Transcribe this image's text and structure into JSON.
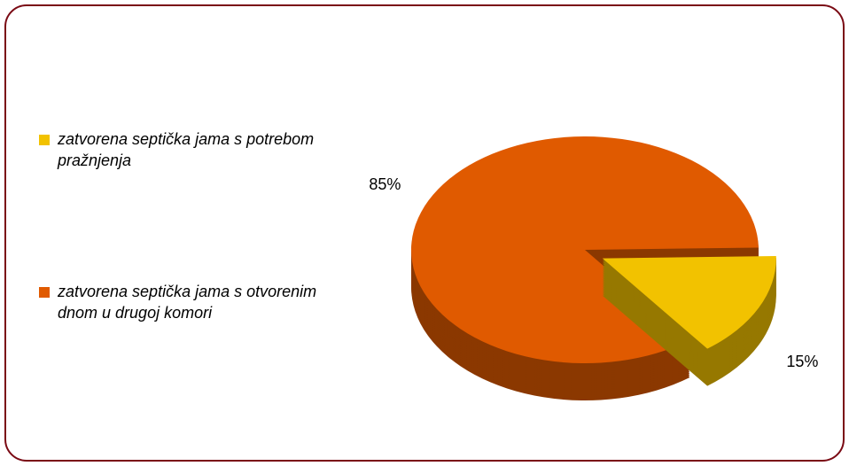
{
  "chart_data": {
    "type": "pie",
    "categories": [
      "zatvorena septička jama s potrebom pražnjenja",
      "zatvorena septička jama s otvorenim dnom u drugoj komori"
    ],
    "values": [
      15,
      85
    ],
    "value_labels": [
      "15%",
      "85%"
    ],
    "colors": [
      "#f2c200",
      "#e05a00"
    ]
  }
}
